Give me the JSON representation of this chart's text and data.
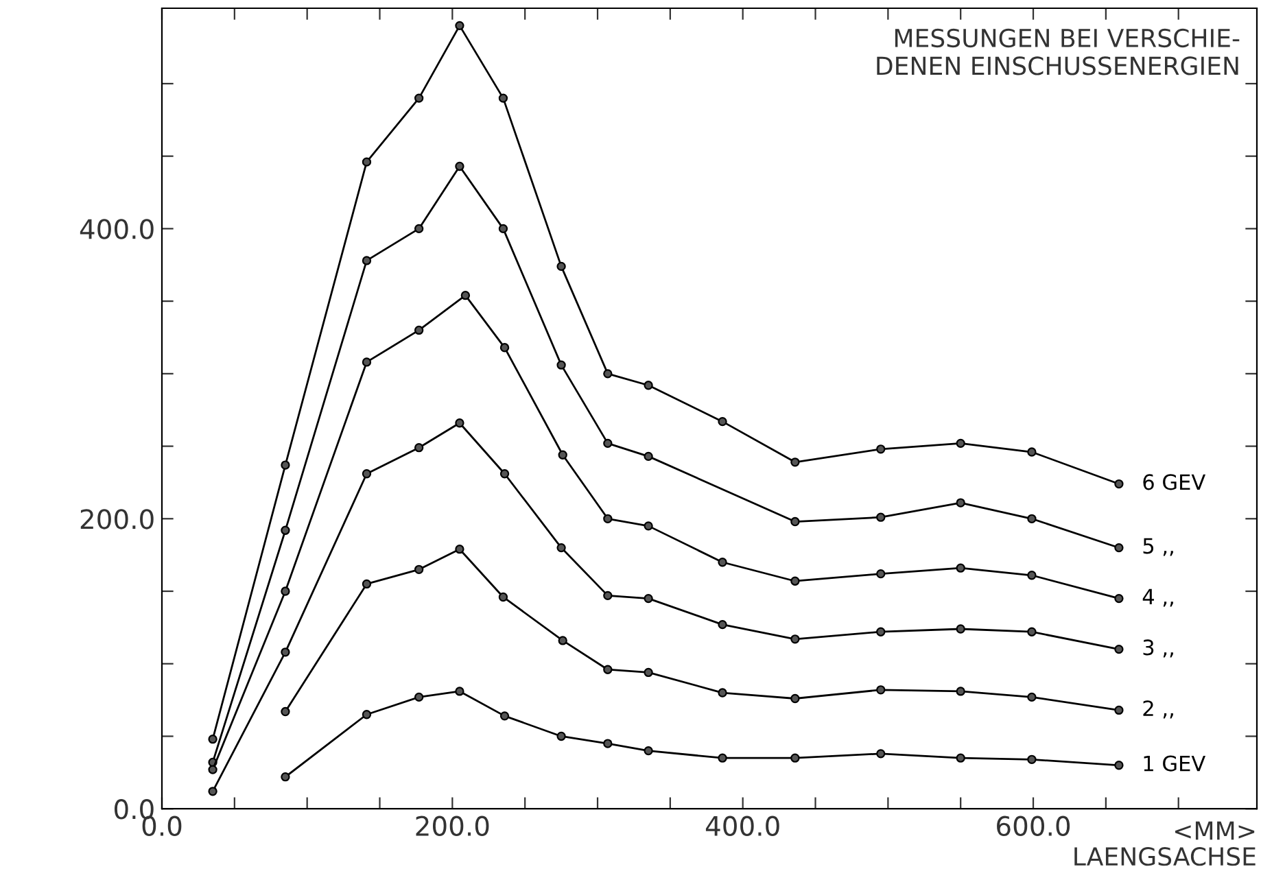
{
  "chart_data": {
    "type": "line",
    "title": "MESSUNGEN BEI VERSCHIE-\nDENEN EINSCHUSSENERGIEN",
    "xlabel": "<MM>\nLAENGSACHSE",
    "xlim": [
      0,
      754
    ],
    "ylim": [
      0,
      552
    ],
    "xticks": [
      {
        "value": 0,
        "label": "0.0"
      },
      {
        "value": 50,
        "label": null
      },
      {
        "value": 100,
        "label": null
      },
      {
        "value": 150,
        "label": null
      },
      {
        "value": 200,
        "label": "200.0"
      },
      {
        "value": 250,
        "label": null
      },
      {
        "value": 300,
        "label": null
      },
      {
        "value": 350,
        "label": null
      },
      {
        "value": 400,
        "label": "400.0"
      },
      {
        "value": 450,
        "label": null
      },
      {
        "value": 500,
        "label": null
      },
      {
        "value": 550,
        "label": null
      },
      {
        "value": 600,
        "label": "600.0"
      },
      {
        "value": 650,
        "label": null
      },
      {
        "value": 700,
        "label": null
      }
    ],
    "yticks": [
      {
        "value": 0,
        "label": "0.0"
      },
      {
        "value": 50,
        "label": null
      },
      {
        "value": 100,
        "label": null
      },
      {
        "value": 150,
        "label": null
      },
      {
        "value": 200,
        "label": "200.0"
      },
      {
        "value": 250,
        "label": null
      },
      {
        "value": 300,
        "label": null
      },
      {
        "value": 350,
        "label": null
      },
      {
        "value": 400,
        "label": "400.0"
      },
      {
        "value": 450,
        "label": null
      },
      {
        "value": 500,
        "label": null
      }
    ],
    "grid": false,
    "legend": false,
    "marker": "circle",
    "line_style": "solid",
    "series": [
      {
        "name": "6 GEV",
        "color": "#000000",
        "x": [
          35,
          85,
          141,
          177,
          205,
          235,
          275,
          307,
          335,
          386,
          436,
          495,
          550,
          599,
          659
        ],
        "values": [
          48,
          237,
          446,
          490,
          540,
          490,
          374,
          300,
          292,
          267,
          239,
          248,
          252,
          246,
          224
        ]
      },
      {
        "name": "5 ,,",
        "color": "#000000",
        "x": [
          35,
          85,
          141,
          177,
          205,
          235,
          275,
          307,
          335,
          436,
          495,
          550,
          599,
          659
        ],
        "values": [
          32,
          192,
          378,
          400,
          443,
          400,
          306,
          252,
          243,
          198,
          201,
          211,
          200,
          180
        ]
      },
      {
        "name": "4 ,,",
        "color": "#000000",
        "x": [
          35,
          85,
          141,
          177,
          209,
          236,
          276,
          307,
          335,
          386,
          436,
          495,
          550,
          599,
          659
        ],
        "values": [
          27,
          150,
          308,
          330,
          354,
          318,
          244,
          200,
          195,
          170,
          157,
          162,
          166,
          161,
          145
        ]
      },
      {
        "name": "3 ,,",
        "color": "#000000",
        "x": [
          35,
          85,
          141,
          177,
          205,
          236,
          275,
          307,
          335,
          386,
          436,
          495,
          550,
          599,
          659
        ],
        "values": [
          12,
          108,
          231,
          249,
          266,
          231,
          180,
          147,
          145,
          127,
          117,
          122,
          124,
          122,
          110
        ]
      },
      {
        "name": "2 ,,",
        "color": "#000000",
        "x": [
          85,
          141,
          177,
          205,
          235,
          276,
          307,
          335,
          386,
          436,
          495,
          550,
          599,
          659
        ],
        "values": [
          67,
          155,
          165,
          179,
          146,
          116,
          96,
          94,
          80,
          76,
          82,
          81,
          77,
          68
        ]
      },
      {
        "name": "1 GEV",
        "color": "#000000",
        "x": [
          85,
          141,
          177,
          205,
          236,
          275,
          307,
          335,
          386,
          436,
          495,
          550,
          599,
          659
        ],
        "values": [
          22,
          65,
          77,
          81,
          64,
          50,
          45,
          40,
          35,
          35,
          38,
          35,
          34,
          30
        ]
      }
    ]
  }
}
